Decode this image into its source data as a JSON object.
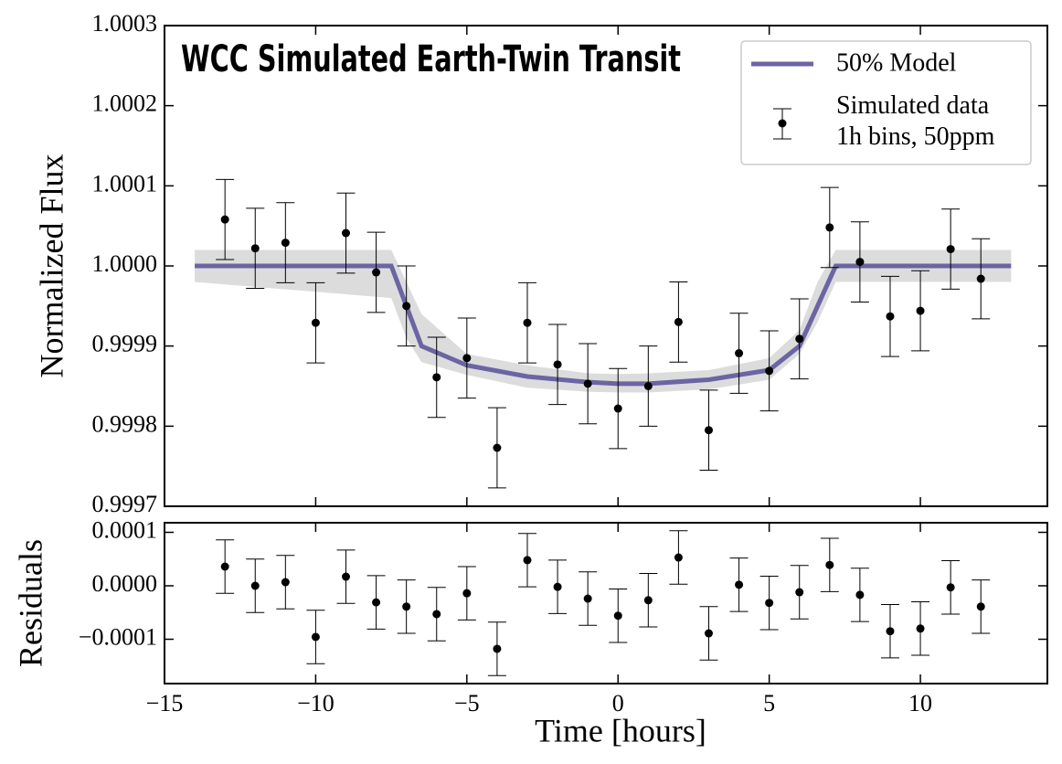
{
  "chart_data": [
    {
      "type": "errorbar",
      "title": "WCC Simulated Earth-Twin Transit",
      "ylabel": "Normalized Flux",
      "xlim": [
        -15,
        14.2
      ],
      "ylim": [
        0.9997,
        1.0003
      ],
      "xticks": [
        {
          "value": -15,
          "label": "−15"
        },
        {
          "value": -10,
          "label": "−10"
        },
        {
          "value": -5,
          "label": "−5"
        },
        0,
        5,
        10
      ],
      "yticks": [
        {
          "value": 0.9997,
          "label": "0.9997"
        },
        {
          "value": 0.9998,
          "label": "0.9998"
        },
        {
          "value": 0.9999,
          "label": "0.9999"
        },
        {
          "value": 1,
          "label": "1.0000"
        },
        1.0001,
        1.0002,
        1.0003
      ],
      "legend": "upper right",
      "series": [
        {
          "name": "50% Model",
          "type": "line",
          "color": "#6b65a3",
          "band_color": "#dcdcdc",
          "x": [
            -14,
            -7.5,
            -7,
            -6.5,
            -5,
            -3,
            -1,
            0,
            1,
            3,
            5,
            6,
            6.6,
            7.2,
            13
          ],
          "values": [
            1,
            1,
            0.99995,
            0.9999,
            0.999876,
            0.999862,
            0.999855,
            0.999853,
            0.999853,
            0.999858,
            0.99987,
            0.9999,
            0.99995,
            1,
            1
          ],
          "band_lower": [
            0.99998,
            0.99996,
            0.99991,
            0.99988,
            0.999864,
            0.999848,
            0.999843,
            0.999842,
            0.999842,
            0.999846,
            0.999858,
            0.99989,
            0.99993,
            0.99998,
            0.99998
          ],
          "band_upper": [
            1.00002,
            1.00002,
            0.99998,
            0.99994,
            0.99989,
            0.999876,
            0.999866,
            0.999865,
            0.999866,
            0.99987,
            0.999885,
            0.99992,
            0.99998,
            1.00002,
            1.00002
          ]
        },
        {
          "name": "Simulated data\n1h bins, 50ppm",
          "type": "errorbar",
          "color": "#000000",
          "x": [
            -13,
            -12,
            -11,
            -10,
            -9,
            -8,
            -7,
            -6,
            -5,
            -4,
            -3,
            -2,
            -1,
            0,
            1,
            2,
            3,
            4,
            5,
            6,
            7,
            8,
            9,
            10,
            11,
            12
          ],
          "values": [
            1.000058,
            1.000022,
            1.000029,
            0.999929,
            1.000041,
            0.999992,
            0.99995,
            0.999861,
            0.999885,
            0.999773,
            0.999929,
            0.999877,
            0.999853,
            0.999822,
            0.99985,
            0.99993,
            0.999795,
            0.999891,
            0.999869,
            0.999909,
            1.000048,
            1.000005,
            0.999937,
            0.999944,
            1.000021,
            0.999984
          ],
          "errors": [
            5e-05,
            5e-05,
            5e-05,
            5e-05,
            5e-05,
            5e-05,
            5e-05,
            5e-05,
            5e-05,
            5e-05,
            5e-05,
            5e-05,
            5e-05,
            5e-05,
            5e-05,
            5e-05,
            5e-05,
            5e-05,
            5e-05,
            5e-05,
            5e-05,
            5e-05,
            5e-05,
            5e-05,
            5e-05,
            5e-05
          ]
        }
      ]
    },
    {
      "type": "errorbar",
      "ylabel": "Residuals",
      "xlabel": "Time [hours]",
      "xlim": [
        -15,
        14.2
      ],
      "ylim": [
        -0.000183,
        0.000118
      ],
      "xticks": [
        {
          "value": -15,
          "label": "−15"
        },
        {
          "value": -10,
          "label": "−10"
        },
        {
          "value": -5,
          "label": "−5"
        },
        0,
        5,
        10
      ],
      "yticks": [
        {
          "value": -0.0001,
          "label": "−0.0001"
        },
        {
          "value": 0,
          "label": "0.0000"
        },
        0.0001
      ],
      "series": [
        {
          "type": "errorbar",
          "color": "#000000",
          "x": [
            -13,
            -12,
            -11,
            -10,
            -9,
            -8,
            -7,
            -6,
            -5,
            -4,
            -3,
            -2,
            -1,
            0,
            1,
            2,
            3,
            4,
            5,
            6,
            7,
            8,
            9,
            10,
            11,
            12
          ],
          "values": [
            3.59e-05,
            0,
            6.8e-06,
            -9.57e-05,
            1.7e-05,
            -3.1e-05,
            -3.9e-05,
            -5.3e-05,
            -1.4e-05,
            -0.000118,
            4.8e-05,
            -2e-06,
            -2.4e-05,
            -5.6e-05,
            -2.7e-05,
            5.3e-05,
            -8.9e-05,
            2e-06,
            -3.2e-05,
            -1.2e-05,
            3.9e-05,
            -1.7e-05,
            -8.5e-05,
            -8e-05,
            -3e-06,
            -3.9e-05
          ],
          "errors": [
            5e-05,
            5e-05,
            5e-05,
            5e-05,
            5e-05,
            5e-05,
            5e-05,
            5e-05,
            5e-05,
            5e-05,
            5e-05,
            5e-05,
            5e-05,
            5e-05,
            5e-05,
            5e-05,
            5e-05,
            5e-05,
            5e-05,
            5e-05,
            5e-05,
            5e-05,
            5e-05,
            5e-05,
            5e-05,
            5e-05
          ]
        }
      ]
    }
  ]
}
